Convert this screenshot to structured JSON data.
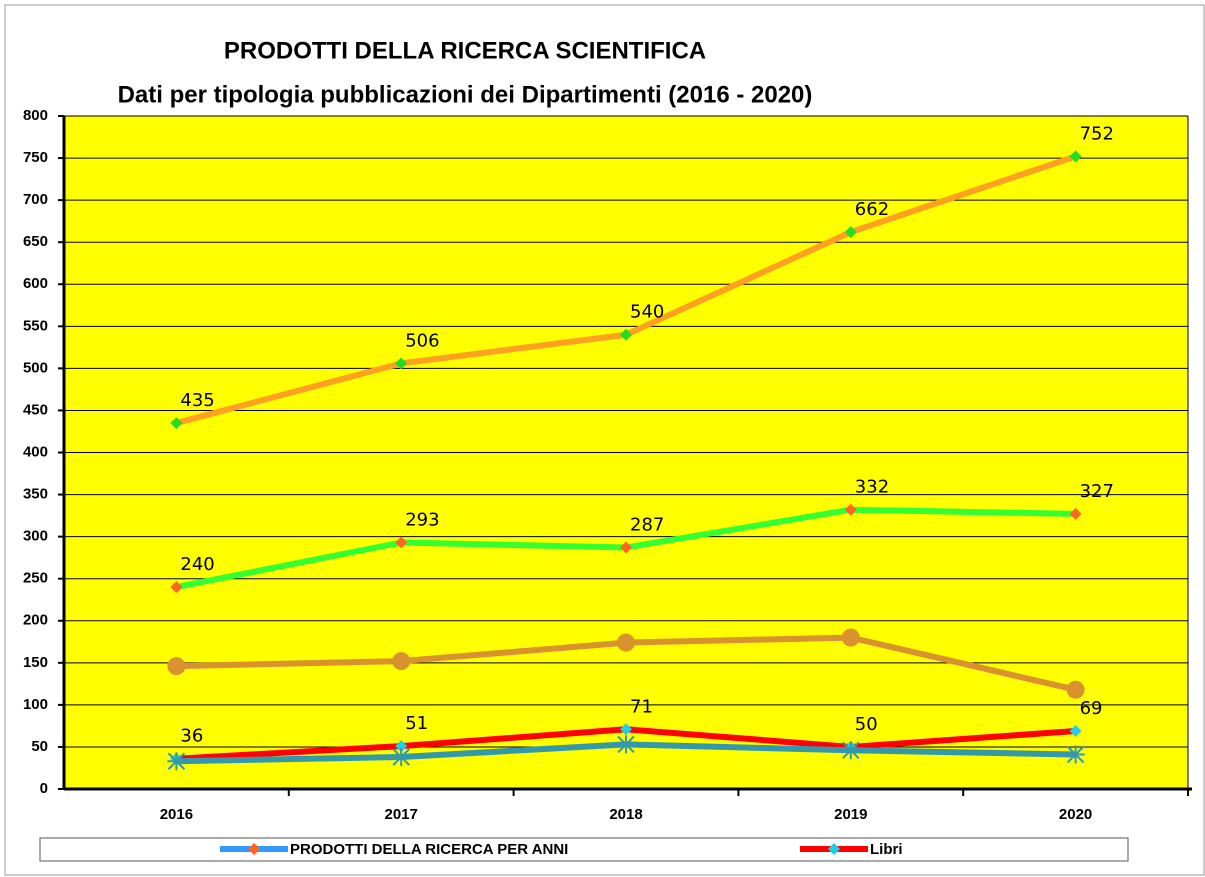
{
  "chart_data": {
    "type": "line",
    "title": "PRODOTTI DELLA RICERCA SCIENTIFICA",
    "subtitle": "Dati per tipologia pubblicazioni dei Dipartimenti  (2016 - 2020)",
    "categories": [
      "2016",
      "2017",
      "2018",
      "2019",
      "2020"
    ],
    "series": [
      {
        "color": "#ffa020",
        "marker": "diamond",
        "marker_color": "#22dd22",
        "values": [
          435,
          506,
          540,
          662,
          752
        ],
        "labels": true
      },
      {
        "name": "PRODOTTI DELLA RICERCA PER ANNI",
        "legend_color": "#3399ff",
        "color": "#33ff33",
        "marker": "diamond",
        "marker_color": "#ff6622",
        "values": [
          240,
          293,
          287,
          332,
          327
        ],
        "labels": true
      },
      {
        "color": "#d9922e",
        "marker": "circle",
        "marker_color": "#d9922e",
        "values": [
          146,
          152,
          174,
          180,
          118
        ],
        "labels": false
      },
      {
        "name": "Libri",
        "legend_color": "#ff0000",
        "color": "#ff0000",
        "marker": "diamond",
        "marker_color": "#22ccee",
        "values": [
          36,
          51,
          71,
          50,
          69
        ],
        "labels": true
      },
      {
        "color": "#3399aa",
        "marker": "asterisk",
        "marker_color": "#3399aa",
        "values": [
          33,
          38,
          53,
          46,
          41
        ],
        "labels": false
      }
    ],
    "ylim": [
      0,
      800
    ],
    "yticks": [
      0,
      50,
      100,
      150,
      200,
      250,
      300,
      350,
      400,
      450,
      500,
      550,
      600,
      650,
      700,
      750,
      800
    ],
    "grid": true,
    "background": "#ffff00",
    "legend": "bottom"
  }
}
